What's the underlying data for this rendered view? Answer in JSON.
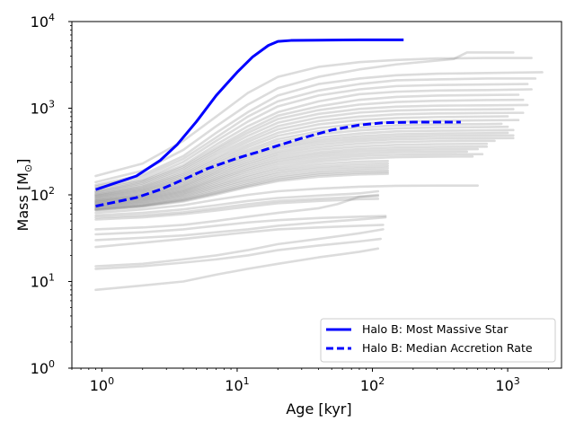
{
  "chart_data": {
    "type": "line",
    "title": "",
    "xlabel": "Age [kyr]",
    "ylabel_text": "Mass [M",
    "ylabel_sub": "⊙",
    "ylabel_close": "]",
    "xscale": "log",
    "yscale": "log",
    "xlim": [
      0.6,
      2500
    ],
    "ylim": [
      1,
      10000
    ],
    "grid": false,
    "legend_position": "lower-right",
    "x_ticks": [
      {
        "value": 1,
        "base": "10",
        "exp": "0"
      },
      {
        "value": 10,
        "base": "10",
        "exp": "1"
      },
      {
        "value": 100,
        "base": "10",
        "exp": "2"
      },
      {
        "value": 1000,
        "base": "10",
        "exp": "3"
      }
    ],
    "y_ticks": [
      {
        "value": 1,
        "base": "10",
        "exp": "0"
      },
      {
        "value": 10,
        "base": "10",
        "exp": "1"
      },
      {
        "value": 100,
        "base": "10",
        "exp": "2"
      },
      {
        "value": 1000,
        "base": "10",
        "exp": "3"
      },
      {
        "value": 10000,
        "base": "10",
        "exp": "4"
      }
    ],
    "series": [
      {
        "name": "Halo B: Most Massive Star",
        "color": "#0000ff",
        "style": "solid",
        "x": [
          0.9,
          1.8,
          2.7,
          3.6,
          5,
          7,
          10,
          13,
          17,
          20,
          25,
          40,
          80,
          170
        ],
        "y": [
          115,
          165,
          250,
          380,
          700,
          1400,
          2600,
          3900,
          5300,
          5900,
          6050,
          6100,
          6150,
          6150
        ]
      },
      {
        "name": "Halo B: Median Accretion Rate",
        "color": "#0000ff",
        "style": "dashed",
        "x": [
          0.9,
          1.8,
          2.7,
          4,
          6,
          10,
          15,
          20,
          30,
          50,
          80,
          120,
          200,
          450
        ],
        "y": [
          74,
          93,
          115,
          150,
          200,
          265,
          320,
          370,
          450,
          560,
          640,
          680,
          690,
          690
        ]
      }
    ],
    "background_tracks": [
      {
        "x": [
          0.9,
          2,
          4,
          7,
          12,
          20,
          40,
          80,
          150,
          300,
          700,
          1500
        ],
        "y": [
          165,
          230,
          420,
          800,
          1500,
          2300,
          3000,
          3400,
          3600,
          3750,
          3800,
          3800
        ]
      },
      {
        "x": [
          0.9,
          2,
          4,
          7,
          12,
          20,
          40,
          80,
          150,
          400,
          500,
          1100
        ],
        "y": [
          140,
          190,
          330,
          620,
          1100,
          1700,
          2300,
          2800,
          3200,
          3700,
          4400,
          4400
        ]
      },
      {
        "x": [
          0.9,
          2,
          4,
          7,
          12,
          20,
          40,
          80,
          150,
          300,
          700,
          1800
        ],
        "y": [
          130,
          170,
          280,
          520,
          900,
          1400,
          1900,
          2200,
          2400,
          2500,
          2550,
          2600
        ]
      },
      {
        "x": [
          0.9,
          2,
          4,
          7,
          12,
          20,
          40,
          80,
          150,
          300,
          700,
          1600
        ],
        "y": [
          125,
          160,
          260,
          460,
          800,
          1200,
          1600,
          1900,
          2100,
          2150,
          2200,
          2200
        ]
      },
      {
        "x": [
          0.9,
          2,
          4,
          7,
          12,
          20,
          40,
          80,
          150,
          300,
          700,
          1400
        ],
        "y": [
          120,
          150,
          240,
          420,
          700,
          1050,
          1400,
          1650,
          1800,
          1850,
          1880,
          1900
        ]
      },
      {
        "x": [
          0.9,
          2,
          4,
          7,
          12,
          20,
          40,
          80,
          150,
          300,
          700,
          1500
        ],
        "y": [
          115,
          145,
          220,
          380,
          620,
          900,
          1200,
          1450,
          1550,
          1600,
          1620,
          1650
        ]
      },
      {
        "x": [
          0.9,
          2,
          4,
          7,
          12,
          20,
          40,
          80,
          150,
          300,
          700,
          1200
        ],
        "y": [
          110,
          140,
          210,
          350,
          560,
          820,
          1050,
          1250,
          1350,
          1400,
          1420,
          1430
        ]
      },
      {
        "x": [
          0.9,
          2,
          4,
          7,
          12,
          20,
          40,
          80,
          150,
          300,
          700,
          1300
        ],
        "y": [
          108,
          135,
          200,
          330,
          520,
          750,
          950,
          1100,
          1180,
          1220,
          1240,
          1250
        ]
      },
      {
        "x": [
          0.9,
          2,
          4,
          7,
          12,
          20,
          40,
          80,
          150,
          300,
          700,
          1400
        ],
        "y": [
          105,
          130,
          190,
          310,
          480,
          680,
          860,
          980,
          1040,
          1070,
          1080,
          1090
        ]
      },
      {
        "x": [
          0.9,
          2,
          4,
          7,
          12,
          20,
          40,
          80,
          150,
          300,
          700,
          1100
        ],
        "y": [
          102,
          125,
          180,
          290,
          440,
          620,
          780,
          890,
          940,
          960,
          970,
          975
        ]
      },
      {
        "x": [
          0.9,
          2,
          4,
          7,
          12,
          20,
          40,
          80,
          150,
          300,
          700,
          1300
        ],
        "y": [
          100,
          122,
          172,
          270,
          410,
          570,
          710,
          800,
          850,
          870,
          880,
          885
        ]
      },
      {
        "x": [
          0.9,
          2,
          4,
          7,
          12,
          20,
          40,
          80,
          150,
          300,
          700,
          1000
        ],
        "y": [
          98,
          118,
          165,
          255,
          380,
          520,
          650,
          730,
          770,
          790,
          800,
          805
        ]
      },
      {
        "x": [
          0.9,
          2,
          4,
          7,
          12,
          20,
          40,
          80,
          150,
          300,
          700,
          1200
        ],
        "y": [
          96,
          115,
          158,
          240,
          355,
          480,
          590,
          660,
          700,
          715,
          725,
          730
        ]
      },
      {
        "x": [
          0.9,
          2,
          4,
          7,
          12,
          20,
          40,
          80,
          150,
          300,
          700,
          900
        ],
        "y": [
          94,
          112,
          152,
          228,
          330,
          440,
          540,
          600,
          635,
          650,
          655,
          660
        ]
      },
      {
        "x": [
          0.9,
          2,
          4,
          7,
          12,
          20,
          40,
          80,
          150,
          300,
          700,
          1000
        ],
        "y": [
          92,
          109,
          146,
          215,
          310,
          410,
          500,
          555,
          585,
          600,
          605,
          610
        ]
      },
      {
        "x": [
          0.9,
          2,
          4,
          7,
          12,
          20,
          40,
          80,
          150,
          300,
          700,
          1100
        ],
        "y": [
          90,
          106,
          140,
          205,
          290,
          380,
          460,
          510,
          540,
          550,
          555,
          560
        ]
      },
      {
        "x": [
          0.9,
          2,
          4,
          7,
          12,
          20,
          40,
          80,
          150,
          300,
          700,
          1000
        ],
        "y": [
          88,
          103,
          135,
          195,
          275,
          360,
          430,
          475,
          500,
          510,
          515,
          520
        ]
      },
      {
        "x": [
          0.9,
          2,
          4,
          7,
          12,
          20,
          40,
          80,
          150,
          300,
          700,
          1100
        ],
        "y": [
          86,
          100,
          130,
          186,
          260,
          340,
          405,
          445,
          468,
          478,
          482,
          485
        ]
      },
      {
        "x": [
          0.9,
          2,
          4,
          7,
          12,
          20,
          40,
          80,
          150,
          300,
          700,
          1100
        ],
        "y": [
          85,
          98,
          126,
          178,
          245,
          318,
          380,
          418,
          438,
          446,
          450,
          452
        ]
      },
      {
        "x": [
          0.9,
          2,
          4,
          7,
          12,
          20,
          40,
          80,
          150,
          300,
          700,
          800
        ],
        "y": [
          83,
          96,
          122,
          170,
          232,
          300,
          355,
          390,
          408,
          416,
          420,
          420
        ]
      },
      {
        "x": [
          0.9,
          2,
          4,
          7,
          12,
          20,
          40,
          80,
          150,
          300,
          700
        ],
        "y": [
          82,
          94,
          118,
          162,
          220,
          282,
          332,
          362,
          378,
          385,
          388
        ]
      },
      {
        "x": [
          0.9,
          2,
          4,
          7,
          12,
          20,
          40,
          80,
          150,
          300,
          700
        ],
        "y": [
          80,
          92,
          114,
          155,
          208,
          265,
          310,
          338,
          352,
          358,
          360
        ]
      },
      {
        "x": [
          0.9,
          2,
          4,
          7,
          12,
          20,
          40,
          80,
          150,
          300,
          600
        ],
        "y": [
          79,
          90,
          111,
          149,
          198,
          250,
          292,
          318,
          330,
          335,
          337
        ]
      },
      {
        "x": [
          0.9,
          2,
          4,
          7,
          12,
          20,
          40,
          80,
          150,
          300,
          500
        ],
        "y": [
          77,
          88,
          108,
          143,
          188,
          236,
          275,
          298,
          310,
          314,
          315
        ]
      },
      {
        "x": [
          0.9,
          2,
          4,
          7,
          12,
          20,
          40,
          80,
          150,
          300,
          650
        ],
        "y": [
          76,
          86,
          105,
          137,
          178,
          222,
          258,
          280,
          290,
          294,
          295
        ]
      },
      {
        "x": [
          0.9,
          2,
          4,
          7,
          12,
          20,
          40,
          80,
          150,
          300,
          550
        ],
        "y": [
          74,
          84,
          102,
          131,
          168,
          208,
          242,
          262,
          272,
          276,
          277
        ]
      },
      {
        "x": [
          0.9,
          2,
          4,
          7,
          12,
          20,
          40,
          80,
          130
        ],
        "y": [
          73,
          82,
          99,
          126,
          160,
          196,
          226,
          242,
          246
        ]
      },
      {
        "x": [
          0.9,
          2,
          4,
          7,
          12,
          20,
          40,
          80,
          130
        ],
        "y": [
          72,
          80,
          96,
          121,
          152,
          185,
          212,
          226,
          230
        ]
      },
      {
        "x": [
          0.9,
          2,
          4,
          7,
          12,
          20,
          40,
          80,
          130
        ],
        "y": [
          70,
          78,
          93,
          116,
          145,
          175,
          200,
          212,
          216
        ]
      },
      {
        "x": [
          0.9,
          2,
          4,
          7,
          12,
          20,
          40,
          80,
          130
        ],
        "y": [
          69,
          76,
          90,
          111,
          138,
          165,
          188,
          200,
          204
        ]
      },
      {
        "x": [
          0.9,
          2,
          4,
          7,
          12,
          20,
          40,
          80,
          130
        ],
        "y": [
          68,
          75,
          88,
          107,
          132,
          157,
          178,
          189,
          192
        ]
      },
      {
        "x": [
          0.9,
          2,
          4,
          7,
          12,
          20,
          40,
          80,
          130
        ],
        "y": [
          67,
          74,
          86,
          104,
          127,
          150,
          170,
          180,
          183
        ]
      },
      {
        "x": [
          0.9,
          2,
          4,
          7,
          12,
          20,
          40,
          80,
          130
        ],
        "y": [
          66,
          73,
          84,
          101,
          123,
          144,
          162,
          172,
          175
        ]
      },
      {
        "x": [
          0.9,
          2,
          4,
          7,
          12,
          20,
          40,
          80,
          150,
          300,
          600
        ],
        "y": [
          62,
          68,
          76,
          88,
          100,
          110,
          118,
          124,
          127,
          128,
          128
        ]
      },
      {
        "x": [
          0.9,
          2,
          4,
          7,
          12,
          20,
          40,
          80,
          110
        ],
        "y": [
          58,
          62,
          68,
          76,
          85,
          92,
          98,
          104,
          110
        ]
      },
      {
        "x": [
          0.9,
          2,
          4,
          7,
          12,
          20,
          40,
          80,
          110
        ],
        "y": [
          55,
          58,
          63,
          70,
          78,
          85,
          90,
          95,
          97
        ]
      },
      {
        "x": [
          0.9,
          2,
          4,
          7,
          12,
          20,
          40,
          80,
          110
        ],
        "y": [
          52,
          55,
          60,
          66,
          73,
          80,
          85,
          89,
          90
        ]
      },
      {
        "x": [
          0.9,
          2,
          4,
          7,
          12,
          20,
          40,
          55,
          80,
          110
        ],
        "y": [
          40,
          42,
          45,
          50,
          56,
          62,
          70,
          78,
          95,
          100
        ]
      },
      {
        "x": [
          0.9,
          2,
          4,
          7,
          12,
          20,
          40,
          80,
          125
        ],
        "y": [
          35,
          37,
          40,
          44,
          48,
          51,
          54,
          56,
          57
        ]
      },
      {
        "x": [
          0.9,
          2,
          4,
          7,
          12,
          20,
          40,
          80,
          125
        ],
        "y": [
          30,
          32,
          34,
          37,
          40,
          44,
          48,
          52,
          55
        ]
      },
      {
        "x": [
          0.9,
          2,
          4,
          7,
          12,
          20,
          40,
          80,
          120
        ],
        "y": [
          25,
          28,
          31,
          34,
          37,
          40,
          42,
          44,
          45
        ]
      },
      {
        "x": [
          0.9,
          2,
          4,
          7,
          12,
          20,
          40,
          80,
          120
        ],
        "y": [
          15,
          16,
          18,
          20,
          23,
          27,
          31,
          36,
          40
        ]
      },
      {
        "x": [
          0.9,
          2,
          4,
          7,
          12,
          20,
          40,
          80,
          115
        ],
        "y": [
          14,
          15,
          16.5,
          18,
          20,
          23,
          26,
          29,
          31
        ]
      },
      {
        "x": [
          0.9,
          2,
          4,
          7,
          12,
          20,
          40,
          80,
          110
        ],
        "y": [
          8,
          9,
          10,
          12,
          14,
          16,
          19,
          22,
          24
        ]
      }
    ]
  }
}
